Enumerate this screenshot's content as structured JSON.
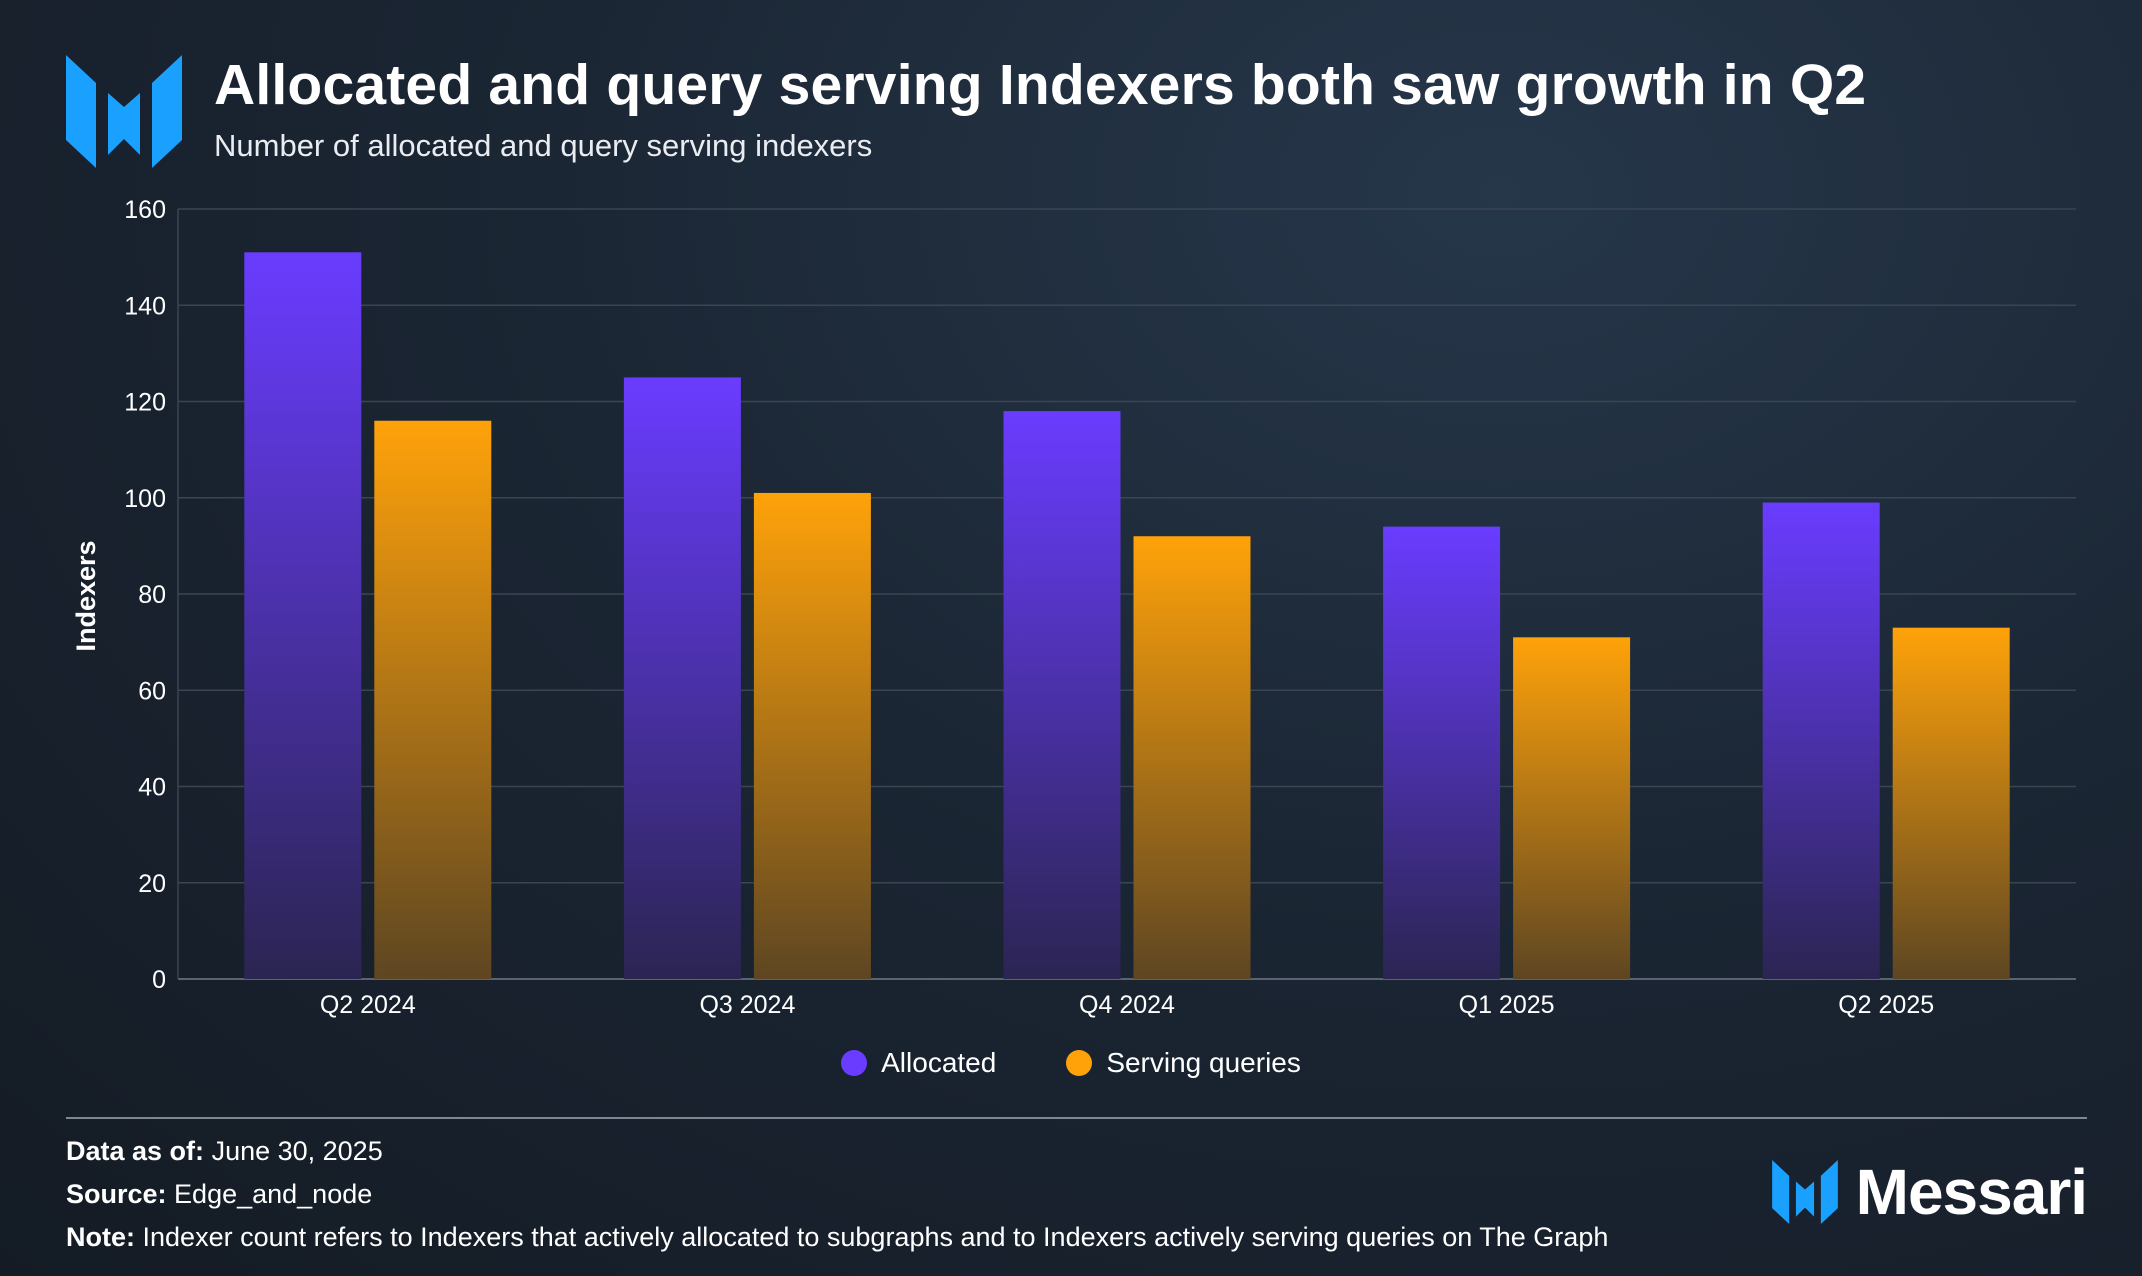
{
  "header": {
    "logo_icon": "messari-logo-icon",
    "title": "Allocated and query serving Indexers both saw growth in Q2",
    "subtitle": "Number of allocated and query serving indexers"
  },
  "chart_data": {
    "type": "bar",
    "categories": [
      "Q2 2024",
      "Q3 2024",
      "Q4 2024",
      "Q1 2025",
      "Q2 2025"
    ],
    "series": [
      {
        "name": "Allocated",
        "values": [
          151,
          125,
          118,
          94,
          99
        ],
        "color": "#6a3cff"
      },
      {
        "name": "Serving queries",
        "values": [
          116,
          101,
          92,
          71,
          73
        ],
        "color": "#ffa20a"
      }
    ],
    "ylabel": "Indexers",
    "ylim": [
      0,
      160
    ],
    "yticks": [
      0,
      20,
      40,
      60,
      80,
      100,
      120,
      140,
      160
    ],
    "grid": true,
    "legend_position": "bottom-center"
  },
  "footer": {
    "data_as_of_label": "Data as of:",
    "data_as_of_value": "June 30, 2025",
    "source_label": "Source:",
    "source_value": "Edge_and_node",
    "note_label": "Note:",
    "note_value": "Indexer count refers to Indexers that actively allocated to subgraphs and to Indexers actively serving queries on The Graph"
  },
  "brand": {
    "icon": "messari-logo-icon",
    "name": "Messari"
  },
  "colors": {
    "accent_blue": "#1aa0ff",
    "allocated": "#6a3cff",
    "serving": "#ffa20a",
    "background": "#1b2634"
  }
}
